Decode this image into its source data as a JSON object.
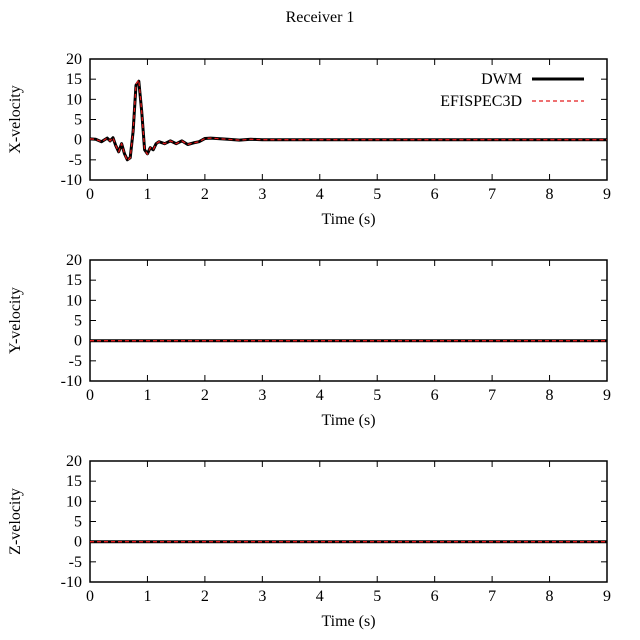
{
  "figure": {
    "title": "Receiver 1"
  },
  "legend": {
    "placement": "top-right",
    "entries": [
      "DWM",
      "EFISPEC3D"
    ]
  },
  "chart_data": [
    {
      "type": "line",
      "ylabel": "X-velocity",
      "xlabel": "Time (s)",
      "xlim": [
        0,
        9
      ],
      "ylim": [
        -10,
        20
      ],
      "xticks": [
        "0",
        "1",
        "2",
        "3",
        "4",
        "5",
        "6",
        "7",
        "8",
        "9"
      ],
      "yticks": [
        "-10",
        "-5",
        "0",
        "5",
        "10",
        "15",
        "20"
      ],
      "grid": false,
      "series": [
        {
          "name": "DWM",
          "color": "#000000",
          "style": "solid",
          "x": [
            0,
            0.1,
            0.2,
            0.3,
            0.35,
            0.4,
            0.45,
            0.5,
            0.55,
            0.6,
            0.65,
            0.7,
            0.75,
            0.8,
            0.85,
            0.9,
            0.95,
            1.0,
            1.05,
            1.1,
            1.15,
            1.2,
            1.3,
            1.4,
            1.5,
            1.6,
            1.7,
            1.8,
            1.9,
            2.0,
            2.1,
            2.2,
            2.4,
            2.6,
            2.8,
            3.0,
            3.5,
            4,
            5,
            6,
            7,
            8,
            9
          ],
          "y": [
            0.2,
            0.1,
            -0.5,
            0.4,
            -0.3,
            0.5,
            -1.5,
            -3.0,
            -1.0,
            -3.5,
            -5.0,
            -4.5,
            2.0,
            13.5,
            14.5,
            7.0,
            -2.5,
            -3.5,
            -2.0,
            -2.5,
            -1.0,
            -0.5,
            -1.0,
            -0.3,
            -1.0,
            -0.3,
            -1.2,
            -0.8,
            -0.5,
            0.3,
            0.4,
            0.3,
            0.1,
            -0.1,
            0.1,
            0.0,
            0.0,
            0.0,
            0.0,
            0.0,
            0.0,
            0.0,
            0.0
          ]
        },
        {
          "name": "EFISPEC3D",
          "color": "#e41a1c",
          "style": "dashed",
          "x": [
            0,
            0.1,
            0.2,
            0.3,
            0.35,
            0.4,
            0.45,
            0.5,
            0.55,
            0.6,
            0.65,
            0.7,
            0.75,
            0.8,
            0.85,
            0.9,
            0.95,
            1.0,
            1.05,
            1.1,
            1.15,
            1.2,
            1.3,
            1.4,
            1.5,
            1.6,
            1.7,
            1.8,
            1.9,
            2.0,
            2.1,
            2.2,
            2.4,
            2.6,
            2.8,
            3.0,
            3.5,
            4,
            5,
            6,
            7,
            8,
            9
          ],
          "y": [
            0.2,
            0.1,
            -0.5,
            0.4,
            -0.3,
            0.5,
            -1.5,
            -3.0,
            -1.0,
            -3.5,
            -5.2,
            -4.5,
            2.0,
            13.8,
            14.8,
            7.0,
            -2.5,
            -3.6,
            -2.0,
            -2.5,
            -1.0,
            -0.5,
            -1.0,
            -0.3,
            -1.0,
            -0.3,
            -1.2,
            -0.8,
            -0.5,
            0.3,
            0.4,
            0.3,
            0.1,
            -0.1,
            0.1,
            0.0,
            0.0,
            0.0,
            0.0,
            0.0,
            0.0,
            0.0,
            0.0
          ]
        }
      ]
    },
    {
      "type": "line",
      "ylabel": "Y-velocity",
      "xlabel": "Time (s)",
      "xlim": [
        0,
        9
      ],
      "ylim": [
        -10,
        20
      ],
      "xticks": [
        "0",
        "1",
        "2",
        "3",
        "4",
        "5",
        "6",
        "7",
        "8",
        "9"
      ],
      "yticks": [
        "-10",
        "-5",
        "0",
        "5",
        "10",
        "15",
        "20"
      ],
      "grid": false,
      "series": [
        {
          "name": "DWM",
          "color": "#000000",
          "style": "solid",
          "x": [
            0,
            9
          ],
          "y": [
            0,
            0
          ]
        },
        {
          "name": "EFISPEC3D",
          "color": "#e41a1c",
          "style": "dashed",
          "x": [
            0,
            9
          ],
          "y": [
            0,
            0
          ]
        }
      ]
    },
    {
      "type": "line",
      "ylabel": "Z-velocity",
      "xlabel": "Time (s)",
      "xlim": [
        0,
        9
      ],
      "ylim": [
        -10,
        20
      ],
      "xticks": [
        "0",
        "1",
        "2",
        "3",
        "4",
        "5",
        "6",
        "7",
        "8",
        "9"
      ],
      "yticks": [
        "-10",
        "-5",
        "0",
        "5",
        "10",
        "15",
        "20"
      ],
      "grid": false,
      "series": [
        {
          "name": "DWM",
          "color": "#000000",
          "style": "solid",
          "x": [
            0,
            9
          ],
          "y": [
            0,
            0
          ]
        },
        {
          "name": "EFISPEC3D",
          "color": "#e41a1c",
          "style": "dashed",
          "x": [
            0,
            9
          ],
          "y": [
            0,
            0
          ]
        }
      ]
    }
  ]
}
